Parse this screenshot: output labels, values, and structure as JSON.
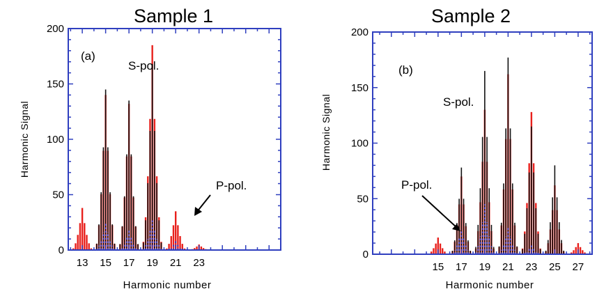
{
  "chart_data": [
    {
      "type": "line",
      "title": "Sample 1",
      "panel_label": "(a)",
      "xlabel": "Harmonic number",
      "ylabel": "Harmonic Signal",
      "xlim": [
        11.8,
        30.0
      ],
      "ylim": [
        0,
        200
      ],
      "yticks": [
        0,
        50,
        100,
        150,
        200
      ],
      "xticks": [
        13,
        15,
        17,
        19,
        21,
        23
      ],
      "grid": false,
      "annotations": [
        "S-pol.",
        "P-pol."
      ],
      "series": [
        {
          "color": "#e8201c",
          "style": "solid",
          "peaks": [
            {
              "x": 13,
              "y": 38
            },
            {
              "x": 15,
              "y": 140
            },
            {
              "x": 17,
              "y": 132
            },
            {
              "x": 19,
              "y": 185
            },
            {
              "x": 21,
              "y": 35
            },
            {
              "x": 23,
              "y": 5
            }
          ]
        },
        {
          "color": "#111111",
          "style": "solid",
          "peaks": [
            {
              "x": 15,
              "y": 145
            },
            {
              "x": 17,
              "y": 135
            },
            {
              "x": 19,
              "y": 168
            }
          ]
        },
        {
          "color": "#1a3fd8",
          "style": "dotted",
          "peaks": [
            {
              "x": 15,
              "y": 25
            },
            {
              "x": 17,
              "y": 18
            },
            {
              "x": 19,
              "y": 28
            },
            {
              "x": 21,
              "y": 8
            }
          ]
        }
      ]
    },
    {
      "type": "line",
      "title": "Sample 2",
      "panel_label": "(b)",
      "xlabel": "Harmonic number",
      "ylabel": "Harmonic Signal",
      "xlim": [
        9.4,
        28.2
      ],
      "ylim": [
        0,
        200
      ],
      "yticks": [
        0,
        50,
        100,
        150,
        200
      ],
      "xticks": [
        15,
        17,
        19,
        21,
        23,
        25,
        27
      ],
      "grid": false,
      "annotations": [
        "S-pol.",
        "P-pol."
      ],
      "series": [
        {
          "color": "#e8201c",
          "style": "solid",
          "peaks": [
            {
              "x": 15,
              "y": 15
            },
            {
              "x": 17,
              "y": 70
            },
            {
              "x": 19,
              "y": 130
            },
            {
              "x": 21,
              "y": 162
            },
            {
              "x": 23,
              "y": 128
            },
            {
              "x": 25,
              "y": 62
            },
            {
              "x": 27,
              "y": 10
            }
          ]
        },
        {
          "color": "#111111",
          "style": "solid",
          "peaks": [
            {
              "x": 17,
              "y": 78
            },
            {
              "x": 19,
              "y": 165
            },
            {
              "x": 21,
              "y": 177
            },
            {
              "x": 23,
              "y": 115
            },
            {
              "x": 25,
              "y": 80
            }
          ]
        },
        {
          "color": "#1a3fd8",
          "style": "dotted",
          "peaks": [
            {
              "x": 17,
              "y": 22
            },
            {
              "x": 19,
              "y": 45
            },
            {
              "x": 21,
              "y": 25
            },
            {
              "x": 23,
              "y": 8
            }
          ]
        }
      ]
    }
  ]
}
